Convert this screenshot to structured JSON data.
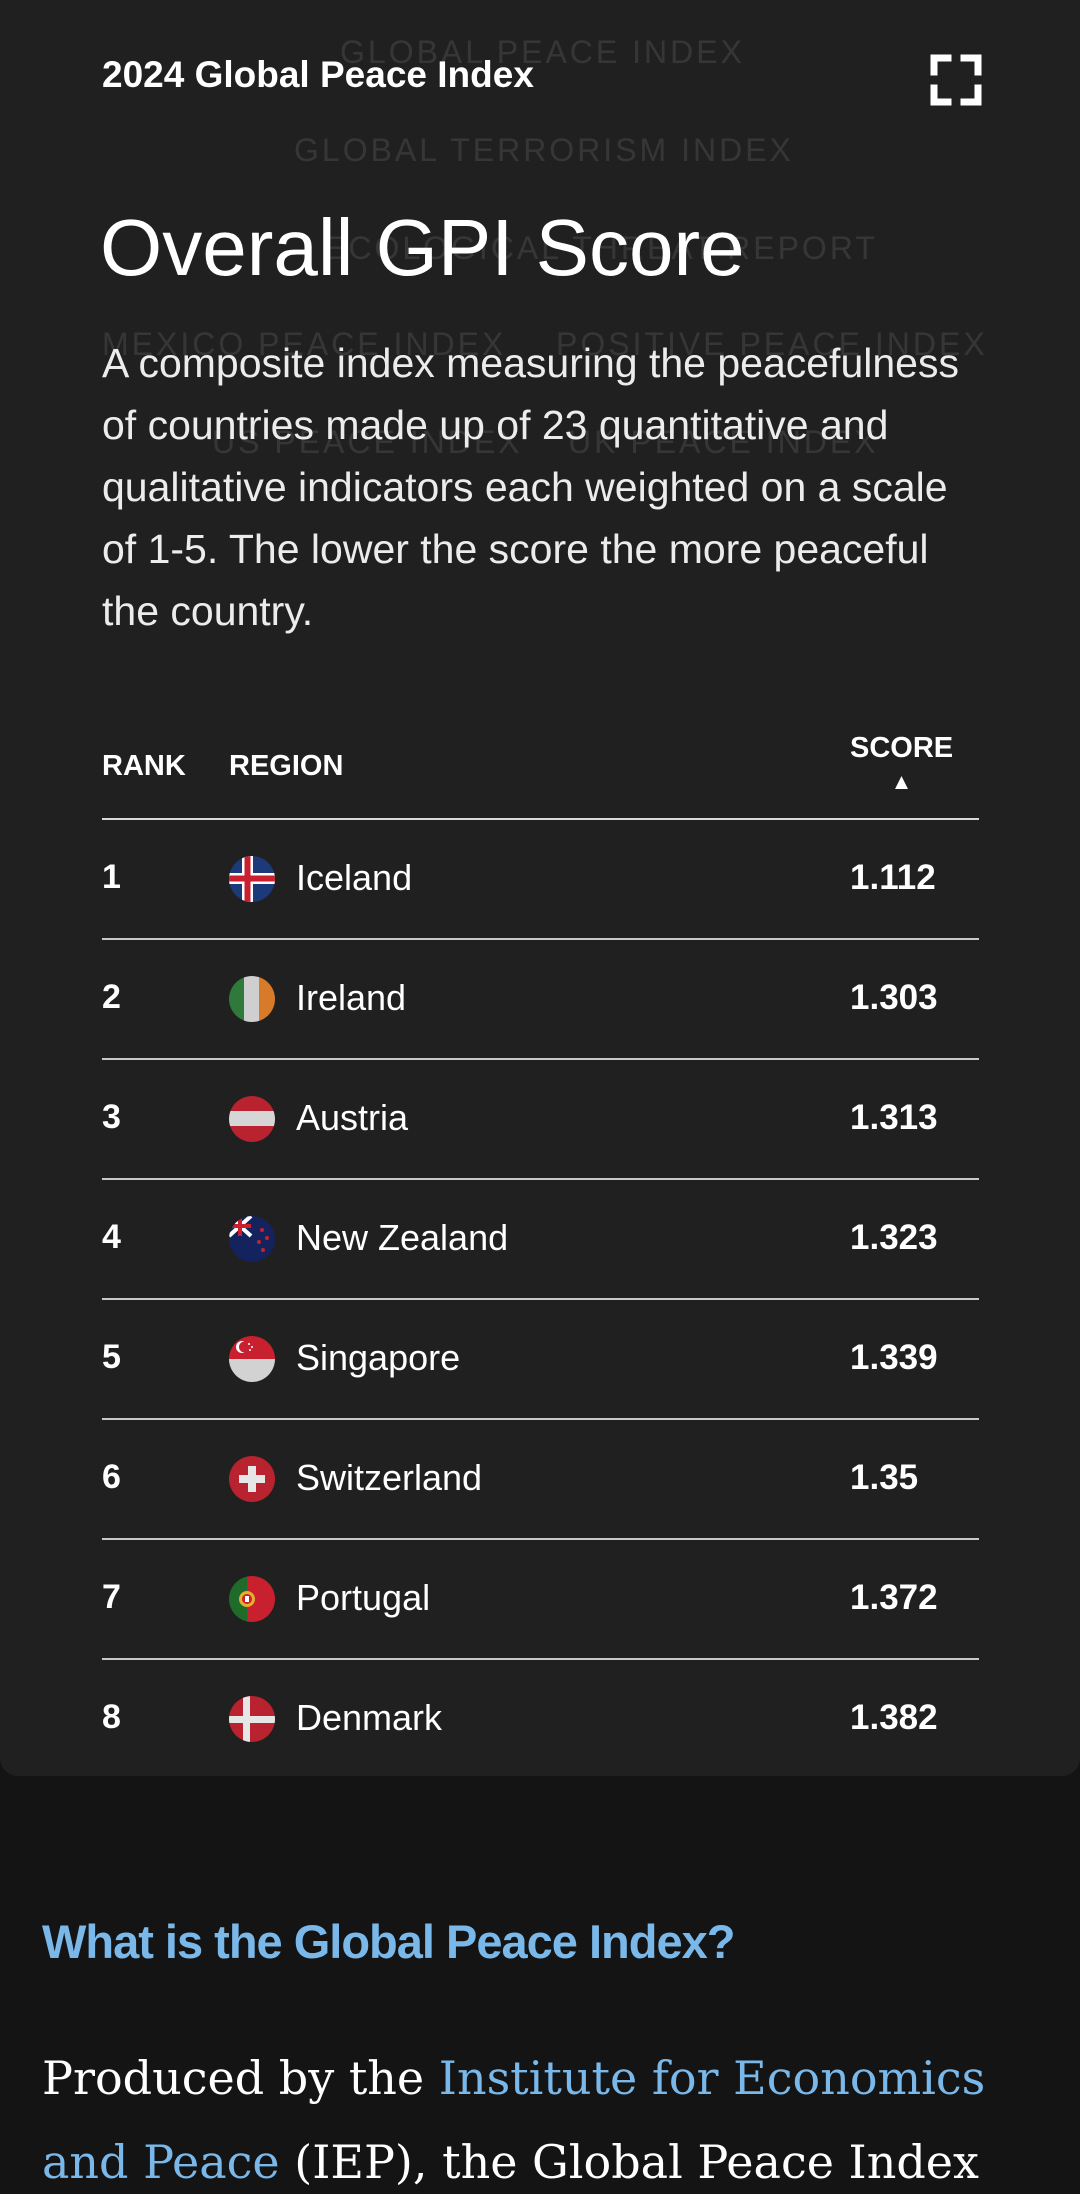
{
  "background_menu": {
    "items": [
      "GLOBAL PEACE INDEX",
      "GLOBAL TERRORISM INDEX",
      "ECOLOGICAL THREAT REPORT",
      "MEXICO PEACE INDEX",
      "POSITIVE PEACE INDEX",
      "US PEACE INDEX",
      "UK PEACE INDEX"
    ]
  },
  "card": {
    "title": "2024 Global Peace Index",
    "heading": "Overall GPI Score",
    "description": "A composite index measuring the peacefulness of countries made up of 23 quantitative and qualitative indicators each weighted on a scale of 1-5. The lower the score the more peaceful the country."
  },
  "table": {
    "headers": {
      "rank": "RANK",
      "region": "REGION",
      "score": "SCORE",
      "sort_indicator": "▲"
    },
    "rows": [
      {
        "rank": "1",
        "region": "Iceland",
        "score": "1.112",
        "flag": "iceland-flag-icon"
      },
      {
        "rank": "2",
        "region": "Ireland",
        "score": "1.303",
        "flag": "ireland-flag-icon"
      },
      {
        "rank": "3",
        "region": "Austria",
        "score": "1.313",
        "flag": "austria-flag-icon"
      },
      {
        "rank": "4",
        "region": "New Zealand",
        "score": "1.323",
        "flag": "new-zealand-flag-icon"
      },
      {
        "rank": "5",
        "region": "Singapore",
        "score": "1.339",
        "flag": "singapore-flag-icon"
      },
      {
        "rank": "6",
        "region": "Switzerland",
        "score": "1.35",
        "flag": "switzerland-flag-icon"
      },
      {
        "rank": "7",
        "region": "Portugal",
        "score": "1.372",
        "flag": "portugal-flag-icon"
      },
      {
        "rank": "8",
        "region": "Denmark",
        "score": "1.382",
        "flag": "denmark-flag-icon"
      }
    ]
  },
  "article": {
    "heading": "What is the Global Peace Index?",
    "text_before_link": "Produced by the ",
    "link_text": "Institute for Economics and Peace",
    "text_after_link": " (IEP), the Global Peace Index (GPI) is the"
  },
  "colors": {
    "card_background": "#202020",
    "page_background": "#141414",
    "link_accent": "#7ab8ea"
  }
}
